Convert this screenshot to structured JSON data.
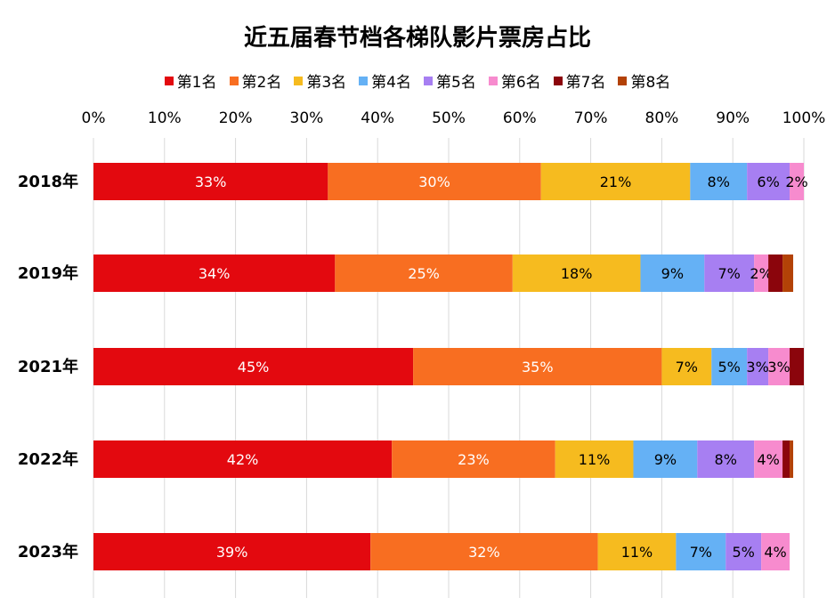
{
  "chart_data": {
    "type": "bar",
    "orientation": "horizontal",
    "stacked": true,
    "title": "近五届春节档各梯队影片票房占比",
    "legend_position": "top",
    "x_axis_position": "top",
    "xlim": [
      0,
      100
    ],
    "x_ticks": [
      "0%",
      "10%",
      "20%",
      "30%",
      "40%",
      "50%",
      "60%",
      "70%",
      "80%",
      "90%",
      "100%"
    ],
    "grid": true,
    "categories": [
      "2018年",
      "2019年",
      "2021年",
      "2022年",
      "2023年"
    ],
    "series": [
      {
        "name": "第1名",
        "color": "#e3090f",
        "values": [
          33,
          34,
          45,
          42,
          39
        ],
        "labels": [
          "33%",
          "34%",
          "45%",
          "42%",
          "39%"
        ]
      },
      {
        "name": "第2名",
        "color": "#f86e21",
        "values": [
          30,
          25,
          35,
          23,
          32
        ],
        "labels": [
          "30%",
          "25%",
          "35%",
          "23%",
          "32%"
        ]
      },
      {
        "name": "第3名",
        "color": "#f6bb1f",
        "values": [
          21,
          18,
          7,
          11,
          11
        ],
        "labels": [
          "21%",
          "18%",
          "7%",
          "11%",
          "11%"
        ]
      },
      {
        "name": "第4名",
        "color": "#65b1f5",
        "values": [
          8,
          9,
          5,
          9,
          7
        ],
        "labels": [
          "8%",
          "9%",
          "5%",
          "9%",
          "7%"
        ]
      },
      {
        "name": "第5名",
        "color": "#a77ff2",
        "values": [
          6,
          7,
          3,
          8,
          5
        ],
        "labels": [
          "6%",
          "7%",
          "3%",
          "8%",
          "5%"
        ]
      },
      {
        "name": "第6名",
        "color": "#f78bce",
        "values": [
          2,
          2,
          3,
          4,
          4
        ],
        "labels": [
          "2%",
          "2%",
          "3%",
          "4%",
          "4%"
        ]
      },
      {
        "name": "第7名",
        "color": "#8b050c",
        "values": [
          0,
          2,
          2,
          1,
          0
        ],
        "labels": [
          "",
          "",
          "",
          "",
          ""
        ]
      },
      {
        "name": "第8名",
        "color": "#b34207",
        "values": [
          0,
          1.5,
          0,
          0.5,
          0
        ],
        "labels": [
          "",
          "",
          "",
          "",
          ""
        ]
      }
    ]
  }
}
